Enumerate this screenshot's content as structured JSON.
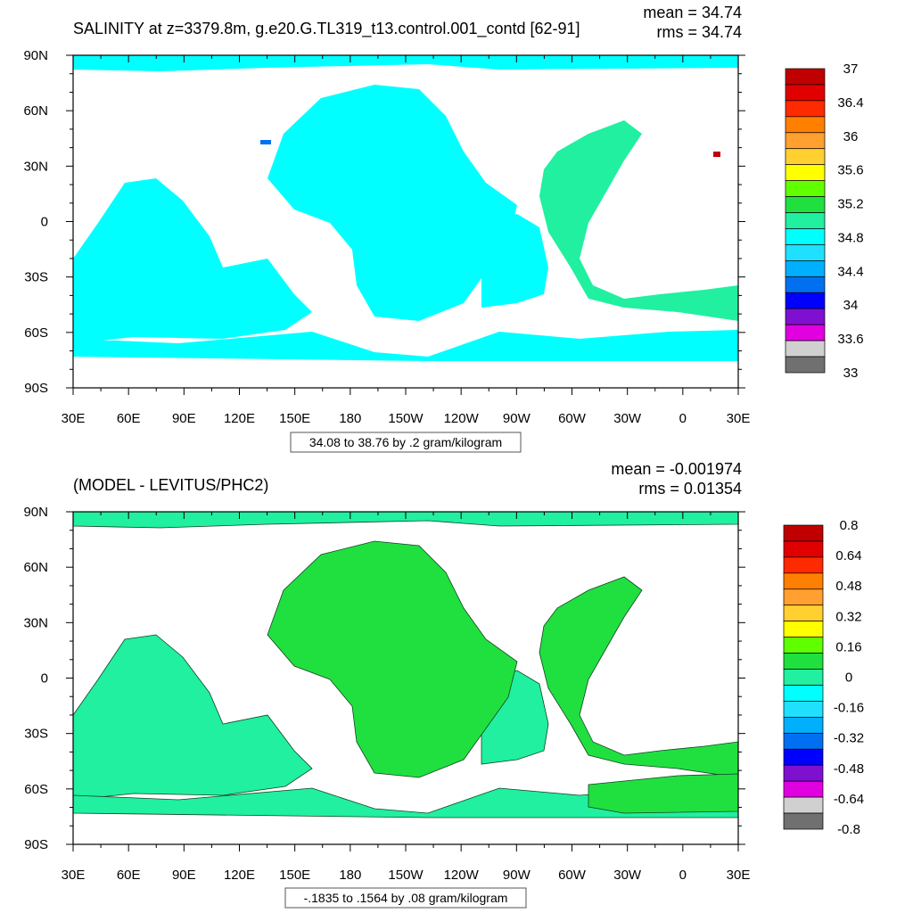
{
  "chart_data": [
    {
      "type": "heatmap",
      "title": "SALINITY at z=3379.8m, g.e20.G.TL319_t13.control.001_contd [62-91]",
      "stats": {
        "mean": "mean = 34.74",
        "rms": "rms = 34.74"
      },
      "x_ticks": [
        "30E",
        "60E",
        "90E",
        "120E",
        "150E",
        "180",
        "150W",
        "120W",
        "90W",
        "60W",
        "30W",
        "0",
        "30E"
      ],
      "y_ticks": [
        "90N",
        "60N",
        "30N",
        "0",
        "30S",
        "60S",
        "90S"
      ],
      "xlim": [
        30,
        390
      ],
      "ylim": [
        -90,
        90
      ],
      "caption": "34.08 to 38.76 by .2 gram/kilogram",
      "colorbar": {
        "colors": [
          "#c00000",
          "#e00000",
          "#ff2a00",
          "#ff8000",
          "#ffa030",
          "#ffd030",
          "#ffff00",
          "#60ff00",
          "#20e040",
          "#20f0a0",
          "#00ffff",
          "#20e0ff",
          "#00b0ff",
          "#0070f0",
          "#0000ff",
          "#8010d0",
          "#e000e0",
          "#d0d0d0",
          "#707070"
        ],
        "labels": [
          "37",
          "36.4",
          "36",
          "35.6",
          "35.2",
          "34.8",
          "34.4",
          "34",
          "33.6",
          "33"
        ]
      }
    },
    {
      "type": "heatmap",
      "title": "(MODEL - LEVITUS/PHC2)",
      "stats": {
        "mean": "mean = -0.001974",
        "rms": "rms = 0.01354"
      },
      "x_ticks": [
        "30E",
        "60E",
        "90E",
        "120E",
        "150E",
        "180",
        "150W",
        "120W",
        "90W",
        "60W",
        "30W",
        "0",
        "30E"
      ],
      "y_ticks": [
        "90N",
        "60N",
        "30N",
        "0",
        "30S",
        "60S",
        "90S"
      ],
      "xlim": [
        30,
        390
      ],
      "ylim": [
        -90,
        90
      ],
      "caption": "-.1835 to .1564 by .08 gram/kilogram",
      "colorbar": {
        "colors": [
          "#c00000",
          "#e00000",
          "#ff2a00",
          "#ff8000",
          "#ffa030",
          "#ffd030",
          "#ffff00",
          "#60ff00",
          "#20e040",
          "#20f0a0",
          "#00ffff",
          "#20e0ff",
          "#00b0ff",
          "#0070f0",
          "#0000ff",
          "#8010d0",
          "#e000e0",
          "#d0d0d0",
          "#707070"
        ],
        "labels": [
          "0.8",
          "0.64",
          "0.48",
          "0.32",
          "0.16",
          "0",
          "-0.16",
          "-0.32",
          "-0.48",
          "-0.64",
          "-0.8"
        ]
      }
    }
  ]
}
